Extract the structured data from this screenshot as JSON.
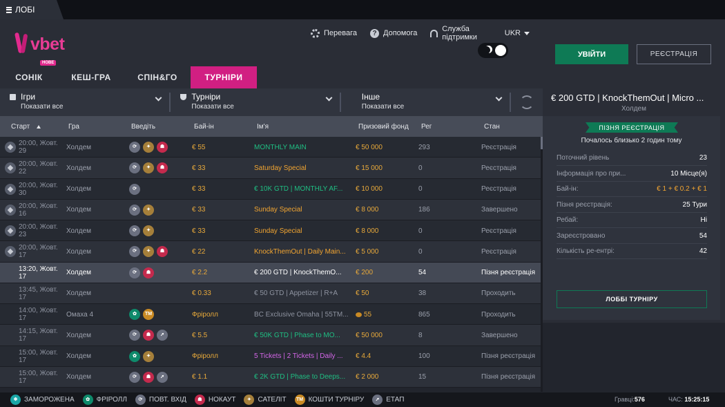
{
  "window": {
    "tab_label": "ЛОБІ"
  },
  "brand": {
    "logo_text": "vbet",
    "badge": "НОВЕ"
  },
  "topnav": {
    "preference": "Перевага",
    "help": "Допомога",
    "support": "Служба підтримки",
    "language": "UKR"
  },
  "auth": {
    "login": "УВІЙТИ",
    "register": "РЕЄСТРАЦІЯ"
  },
  "tabs": [
    {
      "label": "СОНІК"
    },
    {
      "label": "КЕШ-ГРА"
    },
    {
      "label": "СПІН&ГО"
    },
    {
      "label": "ТУРНІРИ",
      "active": true
    }
  ],
  "filters": [
    {
      "label": "Ігри",
      "value": "Показати все",
      "icon": "cards-icon"
    },
    {
      "label": "Турніри",
      "value": "Показати все",
      "icon": "trophy-icon"
    },
    {
      "label": "Інше",
      "value": "Показати все",
      "icon": ""
    }
  ],
  "table": {
    "headers": {
      "start": "Старт",
      "game": "Гра",
      "type": "Введіть",
      "buyin": "Бай-ін",
      "name": "Ім'я",
      "prize": "Призовий фонд",
      "reg": "Рег",
      "state": "Стан"
    },
    "rows": [
      {
        "start": "20:00, Жовт. 29",
        "game": "Холдем",
        "icons": [
          "rebuy",
          "satellite",
          "knockout"
        ],
        "buyin": "€ 55",
        "name": "MONTHLY MAIN",
        "name_color": "green",
        "prize": "€ 50 000",
        "reg": "293",
        "state": "Реєстрація",
        "pin": true
      },
      {
        "start": "20:00, Жовт. 22",
        "game": "Холдем",
        "icons": [
          "rebuy",
          "satellite",
          "knockout"
        ],
        "buyin": "€ 33",
        "name": "Saturday Special",
        "name_color": "orange",
        "prize": "€ 15 000",
        "reg": "0",
        "state": "Реєстрація",
        "pin": true
      },
      {
        "start": "20:00, Жовт. 30",
        "game": "Холдем",
        "icons": [
          "rebuy"
        ],
        "buyin": "€ 33",
        "name": "€ 10K  GTD  | MONTHLY AF...",
        "name_color": "green",
        "prize": "€ 10 000",
        "reg": "0",
        "state": "Реєстрація",
        "pin": true
      },
      {
        "start": "20:00, Жовт. 16",
        "game": "Холдем",
        "icons": [
          "rebuy",
          "satellite"
        ],
        "buyin": "€ 33",
        "name": "Sunday Special",
        "name_color": "orange",
        "prize": "€ 8 000",
        "reg": "186",
        "state": "Завершено",
        "pin": true
      },
      {
        "start": "20:00, Жовт. 23",
        "game": "Холдем",
        "icons": [
          "rebuy",
          "satellite"
        ],
        "buyin": "€ 33",
        "name": "Sunday Special",
        "name_color": "orange",
        "prize": "€ 8 000",
        "reg": "0",
        "state": "Реєстрація",
        "pin": true
      },
      {
        "start": "20:00, Жовт. 17",
        "game": "Холдем",
        "icons": [
          "rebuy",
          "satellite",
          "knockout"
        ],
        "buyin": "€ 22",
        "name": "KnockThemOut | Daily Main...",
        "name_color": "orange",
        "prize": "€ 5 000",
        "reg": "0",
        "state": "Реєстрація",
        "pin": true
      },
      {
        "start": "13:20, Жовт. 17",
        "game": "Холдем",
        "icons": [
          "rebuy",
          "knockout"
        ],
        "buyin": "€ 2.2",
        "name": "€ 200  GTD  | KnockThemO...",
        "name_color": "white",
        "prize": "€ 200",
        "reg": "54",
        "state": "Пізня реєстрація",
        "pin": false,
        "selected": true
      },
      {
        "start": "13:45, Жовт. 17",
        "game": "Холдем",
        "icons": [],
        "buyin": "€ 0.33",
        "name": "€ 50  GTD  | Appetizer | R+A",
        "name_color": "grey",
        "prize": "€ 50",
        "reg": "38",
        "state": "Проходить",
        "pin": false
      },
      {
        "start": "14:00, Жовт. 17",
        "game": "Омаха 4",
        "icons": [
          "freeroll",
          "tm"
        ],
        "buyin": "Фріролл",
        "name": "BC Exclusive Omaha | 55TM...",
        "name_color": "grey",
        "prize": "55",
        "prize_coin": true,
        "reg": "865",
        "state": "Проходить",
        "pin": false
      },
      {
        "start": "14:15, Жовт. 17",
        "game": "Холдем",
        "icons": [
          "rebuy",
          "knockout",
          "stage"
        ],
        "buyin": "€ 5.5",
        "name": "€ 50K  GTD  | Phase to MO...",
        "name_color": "green",
        "prize": "€ 50 000",
        "reg": "8",
        "state": "Завершено",
        "pin": false
      },
      {
        "start": "15:00, Жовт. 17",
        "game": "Холдем",
        "icons": [
          "freeroll",
          "satellite"
        ],
        "buyin": "Фріролл",
        "name": "5 Tickets | 2 Tickets | Daily ...",
        "name_color": "pink",
        "prize": "€ 4.4",
        "reg": "100",
        "state": "Пізня реєстрація",
        "pin": false
      },
      {
        "start": "15:00, Жовт. 17",
        "game": "Холдем",
        "icons": [
          "rebuy",
          "knockout",
          "stage"
        ],
        "buyin": "€ 1.1",
        "name": "€ 2K  GTD  | Phase to Deeps...",
        "name_color": "green",
        "prize": "€ 2 000",
        "reg": "15",
        "state": "Пізня реєстрація",
        "pin": false
      }
    ]
  },
  "details": {
    "title": "€ 200 GTD | KnockThemOut | Micro ...",
    "subtitle": "Холдем",
    "badge": "ПІЗНЯ РЕЄСТРАЦІЯ",
    "started": "Почалось близько 2 годин тому",
    "rows": [
      {
        "label": "Поточний рівень",
        "value": "23"
      },
      {
        "label": "Інформація про при...",
        "value": "10 Місце(я)"
      },
      {
        "label": "Бай-ін:",
        "value": "€ 1 + € 0.2 + € 1",
        "accent": true
      },
      {
        "label": "Пізня реєстрація:",
        "value": "25 Тури"
      },
      {
        "label": "Ребай:",
        "value": "Ні"
      },
      {
        "label": "Зареєстровано",
        "value": "54"
      },
      {
        "label": "Кількість ре-ентрі:",
        "value": "42"
      }
    ],
    "lobby_button": "ЛОББІ ТУРНІРУ"
  },
  "legend": [
    {
      "icon": "frozen",
      "label": "ЗАМОРОЖЕНА"
    },
    {
      "icon": "freeroll",
      "label": "ФРІРОЛЛ"
    },
    {
      "icon": "rebuy",
      "label": "ПОВТ. ВХІД"
    },
    {
      "icon": "knockout",
      "label": "НОКАУТ"
    },
    {
      "icon": "satellite",
      "label": "САТЕЛІТ"
    },
    {
      "icon": "tm",
      "label": "КОШТИ ТУРНІРУ"
    },
    {
      "icon": "stage",
      "label": "ЕТАП"
    }
  ],
  "status": {
    "players_label": "Гравці:",
    "players": "576",
    "time_label": "ЧАС:",
    "time": "15:25:15"
  },
  "colors": {
    "accent_pink": "#d11f82",
    "accent_green": "#0e7a55",
    "gold": "#f2a531"
  }
}
